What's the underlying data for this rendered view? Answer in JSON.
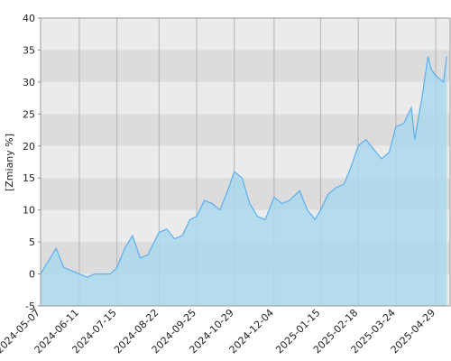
{
  "chart_data": {
    "type": "area",
    "y_label": "[Zmiany %]",
    "x": [
      "2024-05-07",
      "2024-05-14",
      "2024-05-21",
      "2024-05-28",
      "2024-06-04",
      "2024-06-11",
      "2024-06-18",
      "2024-06-25",
      "2024-07-02",
      "2024-07-09",
      "2024-07-15",
      "2024-07-22",
      "2024-07-29",
      "2024-08-05",
      "2024-08-12",
      "2024-08-22",
      "2024-08-29",
      "2024-09-05",
      "2024-09-12",
      "2024-09-19",
      "2024-09-25",
      "2024-10-02",
      "2024-10-09",
      "2024-10-16",
      "2024-10-23",
      "2024-10-29",
      "2024-11-05",
      "2024-11-12",
      "2024-11-19",
      "2024-11-26",
      "2024-12-04",
      "2024-12-11",
      "2024-12-18",
      "2024-12-27",
      "2025-01-03",
      "2025-01-10",
      "2025-01-15",
      "2025-01-22",
      "2025-01-29",
      "2025-02-05",
      "2025-02-12",
      "2025-02-18",
      "2025-02-25",
      "2025-03-04",
      "2025-03-11",
      "2025-03-18",
      "2025-03-24",
      "2025-03-31",
      "2025-04-07",
      "2025-04-10",
      "2025-04-17",
      "2025-04-22",
      "2025-04-25",
      "2025-04-29",
      "2025-05-06",
      "2025-05-09"
    ],
    "series": [
      {
        "color": "#5aaef0",
        "fill": "#a8d8ee",
        "values": [
          0,
          2,
          4,
          1,
          0.5,
          0,
          -0.5,
          0,
          0,
          0,
          1,
          4,
          6,
          2.5,
          3,
          6.5,
          7,
          5.5,
          6,
          8.5,
          9,
          11.5,
          11,
          10,
          13,
          16,
          15,
          11,
          9,
          8.5,
          12,
          11,
          11.5,
          13,
          10,
          8.5,
          10,
          12.5,
          13.5,
          14,
          17,
          20,
          21,
          19.5,
          18,
          19,
          23,
          23.5,
          26,
          21,
          28,
          34,
          32,
          31,
          30,
          34
        ]
      }
    ],
    "xlim": [
      "2024-05-07",
      "2025-05-12"
    ],
    "xticks": [
      "2024-05-07",
      "2024-06-11",
      "2024-07-15",
      "2024-08-22",
      "2024-09-25",
      "2024-10-29",
      "2024-12-04",
      "2025-01-15",
      "2025-02-18",
      "2025-03-24",
      "2025-04-29"
    ],
    "ylim": [
      -5,
      40
    ],
    "yticks": [
      -5,
      0,
      5,
      10,
      15,
      20,
      25,
      30,
      35,
      40
    ],
    "grid": true
  }
}
